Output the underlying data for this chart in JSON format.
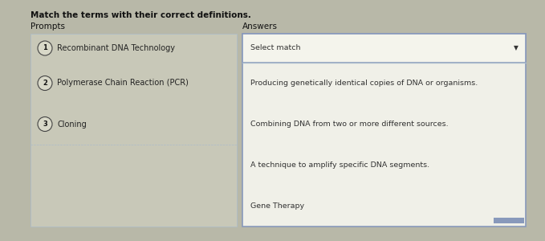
{
  "title": "Match the terms with their correct definitions.",
  "prompts_header": "Prompts",
  "answers_header": "Answers",
  "bg_color": "#b8b8a8",
  "left_panel_color": "#c8c8b8",
  "box_color": "#f0f0e8",
  "select_box_color": "#f4f4ec",
  "border_color": "#8899bb",
  "prompts": [
    {
      "num": "1",
      "text": "Recombinant DNA Technology"
    },
    {
      "num": "2",
      "text": "Polymerase Chain Reaction (PCR)"
    },
    {
      "num": "3",
      "text": "Cloning"
    }
  ],
  "select_match_text": "Select match",
  "answers": [
    "Producing genetically identical copies of DNA or organisms.",
    "Combining DNA from two or more different sources.",
    "A technique to amplify specific DNA segments.",
    "Gene Therapy"
  ],
  "divider_color": "#aabbcc",
  "circle_bg": "#d8d8c8",
  "circle_border": "#444444",
  "scrollbar_color": "#8899bb",
  "title_fontsize": 7.5,
  "header_fontsize": 7.5,
  "prompt_fontsize": 7.0,
  "answer_fontsize": 6.8
}
